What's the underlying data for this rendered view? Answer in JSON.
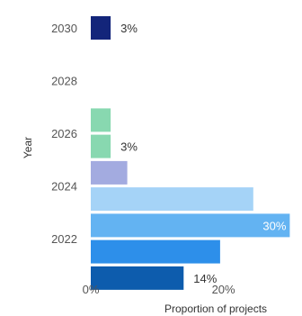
{
  "chart_data": {
    "type": "bar",
    "orientation": "horizontal",
    "xlabel": "Proportion of projects",
    "ylabel": "Year",
    "xlim": [
      0,
      31
    ],
    "x_ticks": [
      {
        "value": 0,
        "label": "0%"
      },
      {
        "value": 20,
        "label": "20%"
      }
    ],
    "y_ticks": [
      {
        "slot": 0,
        "label": "2030"
      },
      {
        "slot": 2,
        "label": "2028"
      },
      {
        "slot": 4,
        "label": "2026"
      },
      {
        "slot": 6,
        "label": "2024"
      },
      {
        "slot": 8,
        "label": "2022"
      }
    ],
    "bars": [
      {
        "slot": 0,
        "value": 3,
        "label": "3%",
        "color": "#13257a",
        "label_color": "#333333"
      },
      {
        "slot": 3.5,
        "value": 3,
        "label": "",
        "color": "#88d8b0",
        "label_color": "#333333"
      },
      {
        "slot": 4.5,
        "value": 3,
        "label": "3%",
        "color": "#88d8b0",
        "label_color": "#333333"
      },
      {
        "slot": 5.5,
        "value": 5.5,
        "label": "",
        "color": "#a3abe0",
        "label_color": "#333333"
      },
      {
        "slot": 6.5,
        "value": 24.5,
        "label": "",
        "color": "#a5d3f7",
        "label_color": "#333333"
      },
      {
        "slot": 7.5,
        "value": 30,
        "label": "30%",
        "color": "#63b3f2",
        "label_color": "#ffffff"
      },
      {
        "slot": 8.5,
        "value": 19.5,
        "label": "",
        "color": "#2d8fea",
        "label_color": "#333333"
      },
      {
        "slot": 9.5,
        "value": 14,
        "label": "14%",
        "color": "#0d5cad",
        "label_color": "#333333"
      }
    ],
    "grid": false,
    "legend": "none"
  }
}
